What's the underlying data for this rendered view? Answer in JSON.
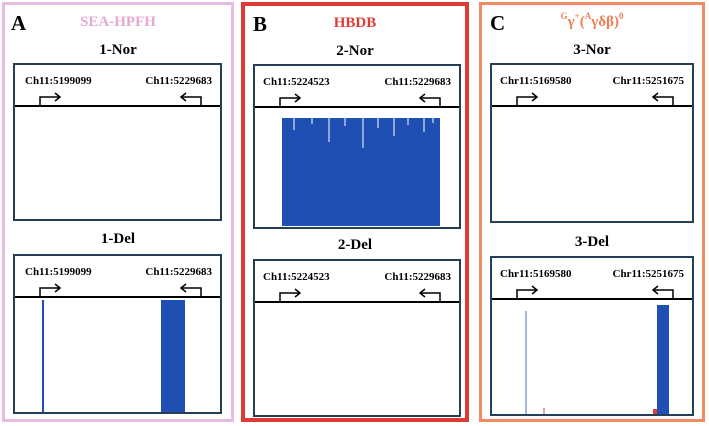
{
  "panels": [
    {
      "letter": "A",
      "title": "SEA-HPFH",
      "title_color": "#e3a9d3",
      "border_color": "#e6bde0",
      "tracks": [
        {
          "label": "1-Nor",
          "coord_left": "Ch11:5199099",
          "coord_right": "Ch11:5229683",
          "signal": "none"
        },
        {
          "label": "1-Del",
          "coord_left": "Ch11:5199099",
          "coord_right": "Ch11:5229683",
          "signal": "peaks_A"
        }
      ]
    },
    {
      "letter": "B",
      "title": "HBDB",
      "title_color": "#e03a35",
      "border_color": "#e03a35",
      "tracks": [
        {
          "label": "2-Nor",
          "coord_left": "Ch11:5224523",
          "coord_right": "Ch11:5229683",
          "signal": "block_B"
        },
        {
          "label": "2-Del",
          "coord_left": "Ch11:5224523",
          "coord_right": "Ch11:5229683",
          "signal": "none"
        }
      ]
    },
    {
      "letter": "C",
      "title_sup1": "G",
      "title_gamma": "γ",
      "title_sup2": "+",
      "title_paren_open": "(",
      "title_sup3": "A",
      "title_rest": "γδβ)",
      "title_sup4": "0",
      "title_color": "#f07e55",
      "border_color": "#ee8d62",
      "tracks": [
        {
          "label": "3-Nor",
          "coord_left": "Chr11:5169580",
          "coord_right": "Chr11:5251675",
          "signal": "none"
        },
        {
          "label": "3-Del",
          "coord_left": "Chr11:5169580",
          "coord_right": "Chr11:5251675",
          "signal": "peaks_C"
        }
      ]
    }
  ],
  "colors": {
    "signal": "#1f4fb2",
    "faint_signal": "#a9b6dd",
    "red_signal": "#e03a35",
    "track_border": "#243f57"
  }
}
